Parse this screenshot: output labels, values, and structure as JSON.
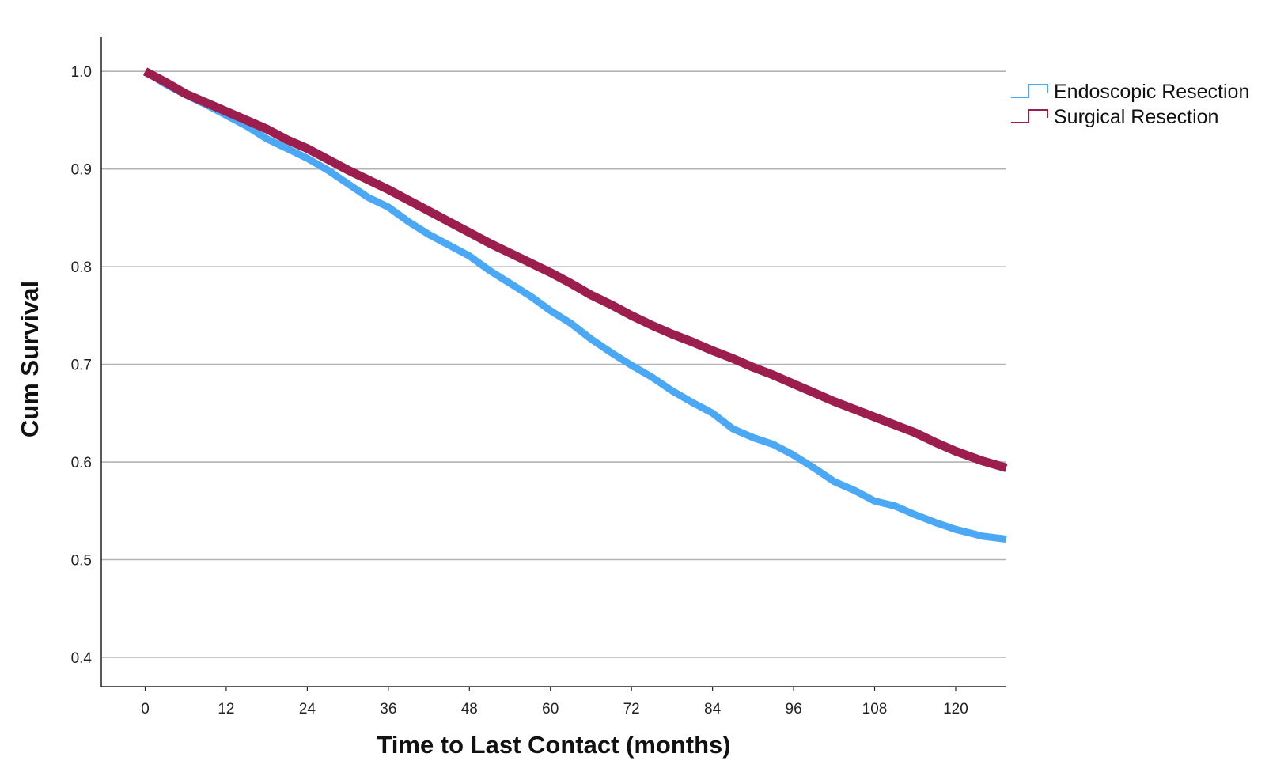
{
  "chart_data": {
    "type": "line",
    "title": "",
    "xlabel": "Time to Last Contact (months)",
    "ylabel": "Cum Survival",
    "xlim": [
      -6.5,
      127.5
    ],
    "ylim": [
      0.37,
      1.035
    ],
    "xticks": [
      0,
      12,
      24,
      36,
      48,
      60,
      72,
      84,
      96,
      108,
      120
    ],
    "xtick_labels": [
      "0",
      "12",
      "24",
      "36",
      "48",
      "60",
      "72",
      "84",
      "96",
      "108",
      "120"
    ],
    "yticks": [
      0.4,
      0.5,
      0.6,
      0.7,
      0.8,
      0.9,
      1.0
    ],
    "ytick_labels": [
      "0.4",
      "0.5",
      "0.6",
      "0.7",
      "0.8",
      "0.9",
      "1.0"
    ],
    "grid": "horizontal",
    "legend_position": "top-right",
    "series": [
      {
        "name": "Endoscopic Resection",
        "color": "#4ba8f5",
        "points": [
          [
            0,
            1.0
          ],
          [
            3,
            0.987
          ],
          [
            6,
            0.976
          ],
          [
            9,
            0.966
          ],
          [
            12,
            0.955
          ],
          [
            15,
            0.944
          ],
          [
            18,
            0.931
          ],
          [
            21,
            0.921
          ],
          [
            24,
            0.911
          ],
          [
            27,
            0.899
          ],
          [
            30,
            0.885
          ],
          [
            33,
            0.871
          ],
          [
            36,
            0.861
          ],
          [
            39,
            0.846
          ],
          [
            42,
            0.833
          ],
          [
            45,
            0.822
          ],
          [
            48,
            0.811
          ],
          [
            51,
            0.796
          ],
          [
            54,
            0.783
          ],
          [
            57,
            0.77
          ],
          [
            60,
            0.755
          ],
          [
            63,
            0.742
          ],
          [
            66,
            0.726
          ],
          [
            69,
            0.712
          ],
          [
            72,
            0.699
          ],
          [
            75,
            0.687
          ],
          [
            78,
            0.673
          ],
          [
            81,
            0.661
          ],
          [
            84,
            0.65
          ],
          [
            87,
            0.634
          ],
          [
            90,
            0.625
          ],
          [
            93,
            0.618
          ],
          [
            96,
            0.607
          ],
          [
            99,
            0.594
          ],
          [
            102,
            0.58
          ],
          [
            105,
            0.571
          ],
          [
            108,
            0.56
          ],
          [
            111,
            0.555
          ],
          [
            114,
            0.546
          ],
          [
            117,
            0.538
          ],
          [
            120,
            0.531
          ],
          [
            124,
            0.524
          ],
          [
            127.5,
            0.521
          ]
        ]
      },
      {
        "name": "Surgical Resection",
        "color": "#9c1e4e",
        "points": [
          [
            0,
            1.0
          ],
          [
            3,
            0.989
          ],
          [
            6,
            0.977
          ],
          [
            9,
            0.968
          ],
          [
            12,
            0.959
          ],
          [
            15,
            0.95
          ],
          [
            18,
            0.941
          ],
          [
            21,
            0.93
          ],
          [
            24,
            0.921
          ],
          [
            27,
            0.91
          ],
          [
            30,
            0.899
          ],
          [
            33,
            0.889
          ],
          [
            36,
            0.879
          ],
          [
            39,
            0.868
          ],
          [
            42,
            0.857
          ],
          [
            45,
            0.846
          ],
          [
            48,
            0.835
          ],
          [
            51,
            0.824
          ],
          [
            54,
            0.814
          ],
          [
            57,
            0.804
          ],
          [
            60,
            0.794
          ],
          [
            63,
            0.783
          ],
          [
            66,
            0.771
          ],
          [
            69,
            0.761
          ],
          [
            72,
            0.75
          ],
          [
            75,
            0.74
          ],
          [
            78,
            0.731
          ],
          [
            81,
            0.723
          ],
          [
            84,
            0.714
          ],
          [
            87,
            0.706
          ],
          [
            90,
            0.697
          ],
          [
            93,
            0.689
          ],
          [
            96,
            0.68
          ],
          [
            99,
            0.671
          ],
          [
            102,
            0.662
          ],
          [
            105,
            0.654
          ],
          [
            108,
            0.646
          ],
          [
            111,
            0.638
          ],
          [
            114,
            0.63
          ],
          [
            117,
            0.62
          ],
          [
            120,
            0.611
          ],
          [
            124,
            0.601
          ],
          [
            127.5,
            0.594
          ]
        ]
      }
    ]
  }
}
